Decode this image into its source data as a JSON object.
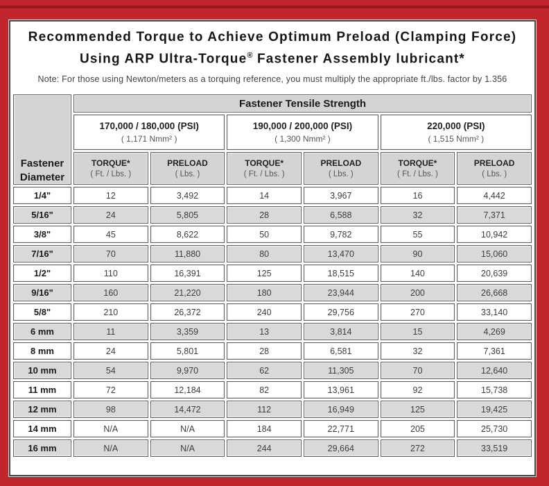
{
  "colors": {
    "frame_red": "#c0262c",
    "frame_accent": "#97191e",
    "header_gray": "#d4d4d4",
    "row_gray": "#d9d9d9",
    "cell_border": "#5a5a5a"
  },
  "title": {
    "line1": "Recommended Torque to Achieve Optimum Preload (Clamping Force)",
    "line2_before": "Using ARP Ultra-Torque",
    "line2_sup": "®",
    "line2_after": " Fastener Assembly lubricant*",
    "note": "Note: For those using Newton/meters as a torquing reference, you must multiply the appropriate ft./lbs. factor by 1.356"
  },
  "table": {
    "tensile_header": "Fastener Tensile Strength",
    "diameter_header_line1": "Fastener",
    "diameter_header_line2": "Diameter",
    "groups": [
      {
        "psi": "170,000 / 180,000 (PSI)",
        "nmm": "( 1,171 Nmm² )"
      },
      {
        "psi": "190,000 / 200,000 (PSI)",
        "nmm": "( 1,300 Nmm² )"
      },
      {
        "psi": "220,000 (PSI)",
        "nmm": "( 1,515 Nmm² )"
      }
    ],
    "col_headers": {
      "torque": "TORQUE*",
      "torque_sub": "( Ft. / Lbs. )",
      "preload": "PRELOAD",
      "preload_sub": "( Lbs. )"
    },
    "rows": [
      {
        "d": "1/4\"",
        "v": [
          "12",
          "3,492",
          "14",
          "3,967",
          "16",
          "4,442"
        ]
      },
      {
        "d": "5/16\"",
        "v": [
          "24",
          "5,805",
          "28",
          "6,588",
          "32",
          "7,371"
        ]
      },
      {
        "d": "3/8\"",
        "v": [
          "45",
          "8,622",
          "50",
          "9,782",
          "55",
          "10,942"
        ]
      },
      {
        "d": "7/16\"",
        "v": [
          "70",
          "11,880",
          "80",
          "13,470",
          "90",
          "15,060"
        ]
      },
      {
        "d": "1/2\"",
        "v": [
          "110",
          "16,391",
          "125",
          "18,515",
          "140",
          "20,639"
        ]
      },
      {
        "d": "9/16\"",
        "v": [
          "160",
          "21,220",
          "180",
          "23,944",
          "200",
          "26,668"
        ]
      },
      {
        "d": "5/8\"",
        "v": [
          "210",
          "26,372",
          "240",
          "29,756",
          "270",
          "33,140"
        ]
      },
      {
        "d": "6 mm",
        "v": [
          "11",
          "3,359",
          "13",
          "3,814",
          "15",
          "4,269"
        ]
      },
      {
        "d": "8 mm",
        "v": [
          "24",
          "5,801",
          "28",
          "6,581",
          "32",
          "7,361"
        ]
      },
      {
        "d": "10 mm",
        "v": [
          "54",
          "9,970",
          "62",
          "11,305",
          "70",
          "12,640"
        ]
      },
      {
        "d": "11 mm",
        "v": [
          "72",
          "12,184",
          "82",
          "13,961",
          "92",
          "15,738"
        ]
      },
      {
        "d": "12 mm",
        "v": [
          "98",
          "14,472",
          "112",
          "16,949",
          "125",
          "19,425"
        ]
      },
      {
        "d": "14 mm",
        "v": [
          "N/A",
          "N/A",
          "184",
          "22,771",
          "205",
          "25,730"
        ]
      },
      {
        "d": "16 mm",
        "v": [
          "N/A",
          "N/A",
          "244",
          "29,664",
          "272",
          "33,519"
        ]
      }
    ]
  }
}
